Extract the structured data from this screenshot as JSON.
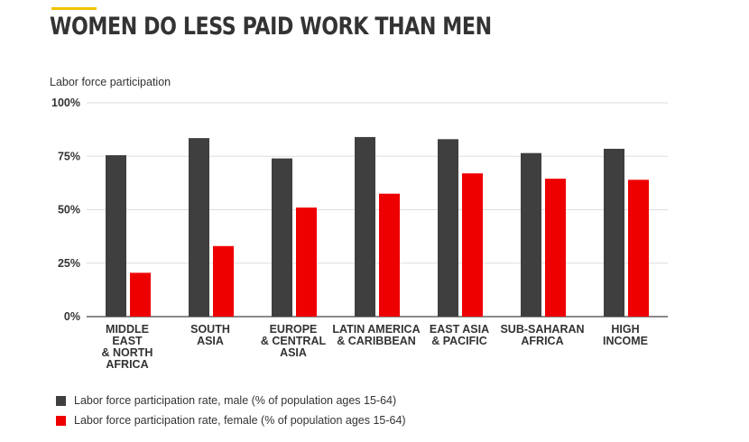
{
  "header": {
    "title": "WOMEN DO LESS PAID WORK THAN MEN",
    "accent_color": "#f2c300"
  },
  "chart_data": {
    "type": "bar",
    "ylabel": "Labor force participation",
    "ylim": [
      0,
      100
    ],
    "yticks": [
      "0%",
      "25%",
      "50%",
      "75%",
      "100%"
    ],
    "ytick_values": [
      0,
      25,
      50,
      75,
      100
    ],
    "grid": true,
    "categories": [
      [
        "MIDDLE",
        "EAST",
        "& NORTH",
        "AFRICA"
      ],
      [
        "SOUTH",
        "ASIA"
      ],
      [
        "EUROPE",
        "& CENTRAL",
        "ASIA"
      ],
      [
        "LATIN AMERICA",
        "& CARIBBEAN"
      ],
      [
        "EAST ASIA",
        "& PACIFIC"
      ],
      [
        "SUB-SAHARAN",
        "AFRICA"
      ],
      [
        "HIGH",
        "INCOME"
      ]
    ],
    "series": [
      {
        "name": "Labor force participation rate, male (% of population ages 15-64)",
        "color": "#3f3f3f",
        "values": [
          75.5,
          83.5,
          74,
          84,
          83,
          76.5,
          78.5
        ]
      },
      {
        "name": "Labor force participation rate, female (% of population ages 15-64)",
        "color": "#ee0000",
        "values": [
          20.5,
          33,
          51,
          57.5,
          67,
          64.5,
          64
        ]
      }
    ],
    "legend_position": "bottom-left"
  }
}
